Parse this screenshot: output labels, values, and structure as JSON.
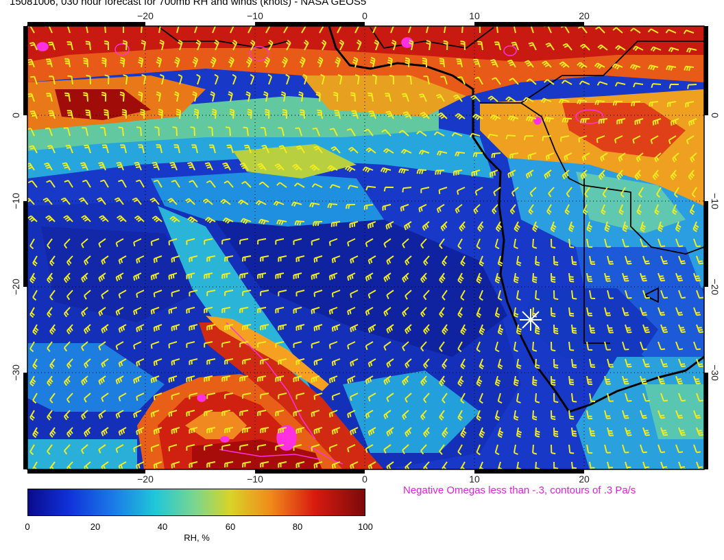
{
  "title": "15081006, 030 hour forecast for 700mb RH and winds (knots) - NASA GEOS5",
  "note": "Negative Omegas less than -.3, contours of .3 Pa/s",
  "colorbar": {
    "label": "RH, %",
    "ticks": [
      "0",
      "20",
      "40",
      "60",
      "80",
      "100"
    ],
    "stops": [
      "#0a0a8c",
      "#1030d8",
      "#1a78e8",
      "#20c8d8",
      "#7ed68a",
      "#d8d428",
      "#f08a1a",
      "#d81a10",
      "#7a0a0a"
    ]
  },
  "axes": {
    "lon_ticks": [
      "−20",
      "−10",
      "0",
      "10",
      "20"
    ],
    "lat_ticks": [
      "0",
      "−10",
      "−20",
      "−30"
    ]
  },
  "colors": {
    "wind_barbs": "#f0ec20",
    "omega_contours": "#ff30e0",
    "coastline": "#000000",
    "marker": "#ffffff"
  },
  "icons": {
    "marker": "star-burst"
  }
}
